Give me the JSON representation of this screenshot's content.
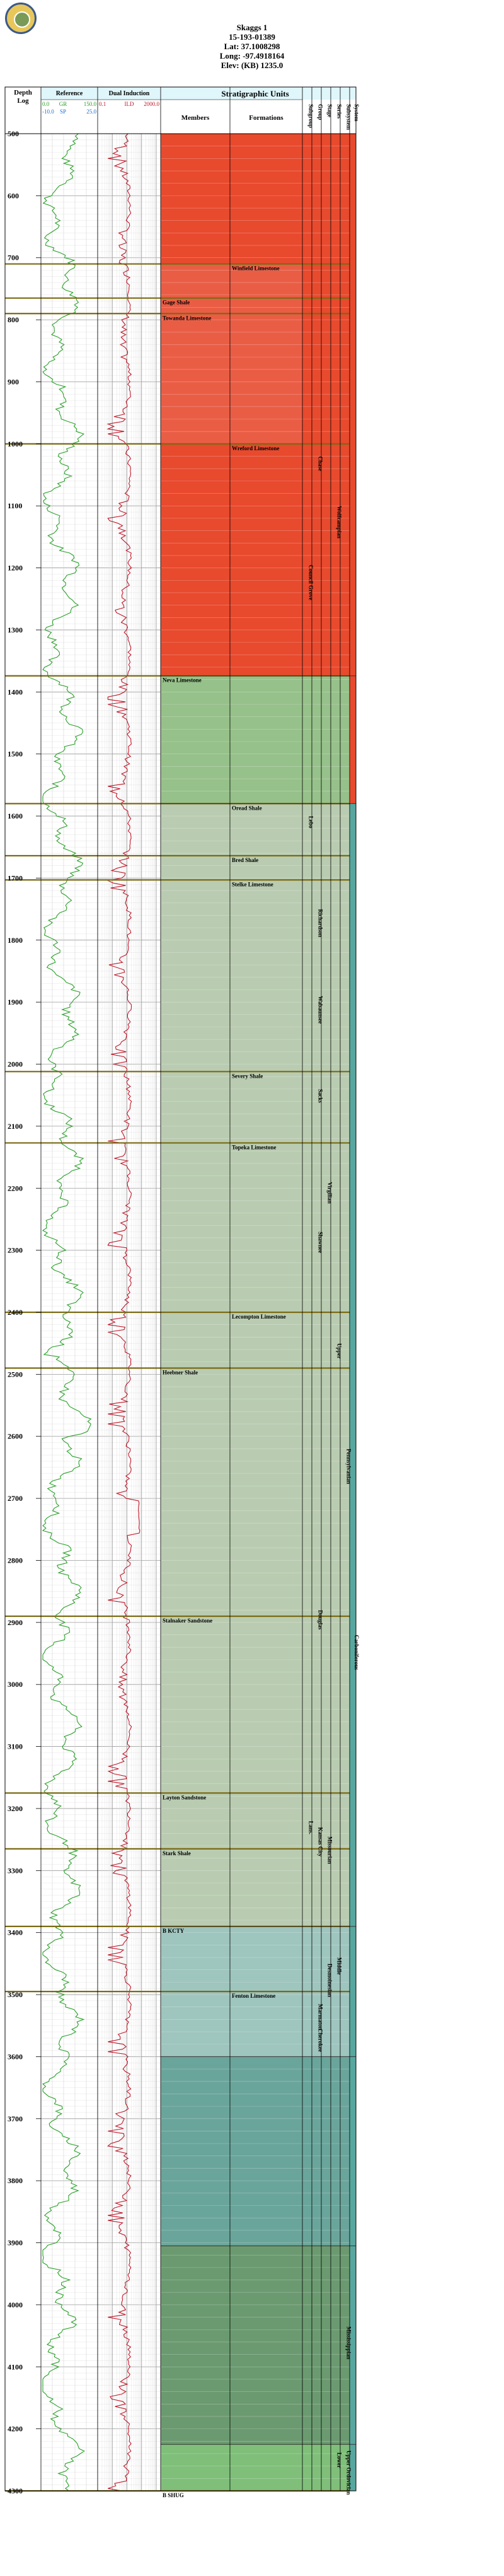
{
  "header": {
    "well_name": "Skaggs 1",
    "api": "15-193-01389",
    "lat": "Lat: 37.1008298",
    "long": "Long: -97.4918164",
    "elev": "Elev: (KB) 1235.0"
  },
  "columns": {
    "depth": "Depth",
    "log": "Log",
    "reference": "Reference",
    "gr_min": "0.0",
    "gr_mnemonic": "GR",
    "gr_max": "150.0",
    "sp_min": "-10.0",
    "sp_mnemonic": "SP",
    "sp_max": "25.0",
    "induction": "Dual Induction",
    "ind_min": "0.1",
    "ind_mnemonic": "ILD",
    "ind_max": "2000.0",
    "strat": "Stratigraphic Units",
    "members": "Members",
    "formations": "Formations",
    "tiers": [
      "Subgroup",
      "Group",
      "Stage",
      "Series",
      "Subsystem",
      "System"
    ]
  },
  "depth_range": [
    500,
    4300
  ],
  "depth_ticks": [
    500,
    600,
    700,
    800,
    900,
    1000,
    1100,
    1200,
    1300,
    1400,
    1500,
    1600,
    1700,
    1800,
    1900,
    2000,
    2100,
    2200,
    2300,
    2400,
    2500,
    2600,
    2700,
    2800,
    2900,
    3000,
    3100,
    3200,
    3300,
    3400,
    3500,
    3600,
    3700,
    3800,
    3900,
    4000,
    4100,
    4200,
    4300
  ],
  "colors": {
    "permian": "#e84a2e",
    "permian_light": "#ea5d45",
    "penn": "#b9ccb1",
    "penn_green": "#96c18a",
    "morrow": "#9ec5be",
    "cherokee": "#6aa59b",
    "miss": "#6b9a70",
    "ordovician": "#7fbf7a",
    "gr_curve": "#2aa02a",
    "res_curve": "#c0182a",
    "marker": "#7a6a14",
    "header_fill": "#dff6fb",
    "teal": "#58a79f"
  },
  "tops": [
    {
      "depth": 710,
      "label": "Winfield Limestone",
      "col": "formation"
    },
    {
      "depth": 765,
      "label": "Gage Shale",
      "col": "member"
    },
    {
      "depth": 790,
      "label": "Towanda Limestone",
      "col": "member"
    },
    {
      "depth": 1000,
      "label": "Wreford Limestone",
      "col": "formation"
    },
    {
      "depth": 1374,
      "label": "Neva Limestone",
      "col": "member"
    },
    {
      "depth": 1580,
      "label": "Oread Shale",
      "col": "formation"
    },
    {
      "depth": 1664,
      "label": "Bred Shale",
      "col": "formation"
    },
    {
      "depth": 1703,
      "label": "Stelke Limestone",
      "col": "formation"
    },
    {
      "depth": 2012,
      "label": "Severy Shale",
      "col": "formation"
    },
    {
      "depth": 2127,
      "label": "Topeka Limestone",
      "col": "formation"
    },
    {
      "depth": 2400,
      "label": "Lecompton Limestone",
      "col": "formation"
    },
    {
      "depth": 2490,
      "label": "Heebner Shale",
      "col": "member"
    },
    {
      "depth": 2890,
      "label": "Stalnaker Sandstone",
      "col": "member"
    },
    {
      "depth": 3175,
      "label": "Layton Sandstone",
      "col": "member"
    },
    {
      "depth": 3265,
      "label": "Stark Shale",
      "col": "member"
    },
    {
      "depth": 3390,
      "label": "B KCTY",
      "col": "member"
    },
    {
      "depth": 3495,
      "label": "Fenton Limestone",
      "col": "formation"
    },
    {
      "depth": 4300,
      "label": "B SHUG",
      "col": "member"
    }
  ],
  "tier_labels": [
    {
      "tier": 1,
      "depth": 1020,
      "label": "Chase"
    },
    {
      "tier": 0,
      "depth": 1195,
      "label": "Council Grove"
    },
    {
      "tier": 3,
      "depth": 1100,
      "label": "Wolfcampian"
    },
    {
      "tier": 0,
      "depth": 1600,
      "label": "Lebo"
    },
    {
      "tier": 1,
      "depth": 1750,
      "label": "Richardson"
    },
    {
      "tier": 1,
      "depth": 1890,
      "label": "Wabaunsee"
    },
    {
      "tier": 1,
      "depth": 2040,
      "label": "Sacks"
    },
    {
      "tier": 2,
      "depth": 2190,
      "label": "Virgilian"
    },
    {
      "tier": 1,
      "depth": 2270,
      "label": "Shawnee"
    },
    {
      "tier": 3,
      "depth": 2450,
      "label": "Upper"
    },
    {
      "tier": 4,
      "depth": 2620,
      "label": "Pennsylvanian"
    },
    {
      "tier": 1,
      "depth": 2880,
      "label": "Douglas"
    },
    {
      "tier": 5,
      "depth": 2920,
      "label": "Carboniferous"
    },
    {
      "tier": 0,
      "depth": 3220,
      "label": "Lans."
    },
    {
      "tier": 1,
      "depth": 3230,
      "label": "Kansas City"
    },
    {
      "tier": 2,
      "depth": 3245,
      "label": "Missourian"
    },
    {
      "tier": 2,
      "depth": 3450,
      "label": "Desmoinesian"
    },
    {
      "tier": 3,
      "depth": 3440,
      "label": "Middle"
    },
    {
      "tier": 1,
      "depth": 3515,
      "label": "Marmaton"
    },
    {
      "tier": 1,
      "depth": 3555,
      "label": "Cherokee"
    },
    {
      "tier": 4,
      "depth": 4035,
      "label": "Mississippian"
    },
    {
      "tier": 3,
      "depth": 4238,
      "label": "Lower"
    },
    {
      "tier": 4,
      "depth": 4235,
      "label": "Upper Ordovician"
    }
  ]
}
